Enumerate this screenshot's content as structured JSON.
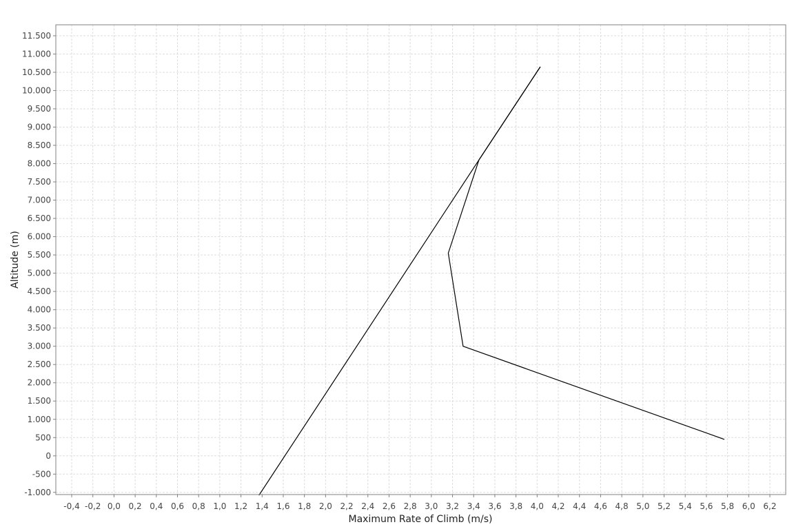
{
  "chart_data": {
    "type": "line",
    "title": "",
    "xlabel": "Maximum Rate of Climb (m/s)",
    "ylabel": "Altitude (m)",
    "xlim": [
      -0.55,
      6.35
    ],
    "ylim": [
      -1060,
      11800
    ],
    "x_ticks": [
      -0.4,
      -0.2,
      0.0,
      0.2,
      0.4,
      0.6,
      0.8,
      1.0,
      1.2,
      1.4,
      1.6,
      1.8,
      2.0,
      2.2,
      2.4,
      2.6,
      2.8,
      3.0,
      3.2,
      3.4,
      3.6,
      3.8,
      4.0,
      4.2,
      4.4,
      4.6,
      4.8,
      5.0,
      5.2,
      5.4,
      5.6,
      5.8,
      6.0,
      6.2
    ],
    "x_tick_labels": [
      "-0,4",
      "-0,2",
      "0,0",
      "0,2",
      "0,4",
      "0,6",
      "0,8",
      "1,0",
      "1,2",
      "1,4",
      "1,6",
      "1,8",
      "2,0",
      "2,2",
      "2,4",
      "2,6",
      "2,8",
      "3,0",
      "3,2",
      "3,4",
      "3,6",
      "3,8",
      "4,0",
      "4,2",
      "4,4",
      "4,6",
      "4,8",
      "5,0",
      "5,2",
      "5,4",
      "5,6",
      "5,8",
      "6,0",
      "6,2"
    ],
    "y_ticks": [
      -1000,
      -500,
      0,
      500,
      1000,
      1500,
      2000,
      2500,
      3000,
      3500,
      4000,
      4500,
      5000,
      5500,
      6000,
      6500,
      7000,
      7500,
      8000,
      8500,
      9000,
      9500,
      10000,
      10500,
      11000,
      11500
    ],
    "y_tick_labels": [
      "-1.000",
      "-500",
      "0",
      "500",
      "1.000",
      "1.500",
      "2.000",
      "2.500",
      "3.000",
      "3.500",
      "4.000",
      "4.500",
      "5.000",
      "5.500",
      "6.000",
      "6.500",
      "7.000",
      "7.500",
      "8.000",
      "8.500",
      "9.000",
      "9.500",
      "10.000",
      "10.500",
      "11.000",
      "11.500"
    ],
    "grid": true,
    "series": [
      {
        "points": [
          [
            1.37,
            -1080
          ],
          [
            3.45,
            8100
          ],
          [
            4.03,
            10650
          ]
        ]
      },
      {
        "points": [
          [
            5.77,
            450
          ],
          [
            3.3,
            3000
          ],
          [
            3.16,
            5550
          ],
          [
            3.45,
            8100
          ],
          [
            4.03,
            10650
          ]
        ]
      }
    ],
    "colors": {
      "line": "#000000",
      "grid": "#dddddd",
      "frame": "#808080"
    }
  }
}
